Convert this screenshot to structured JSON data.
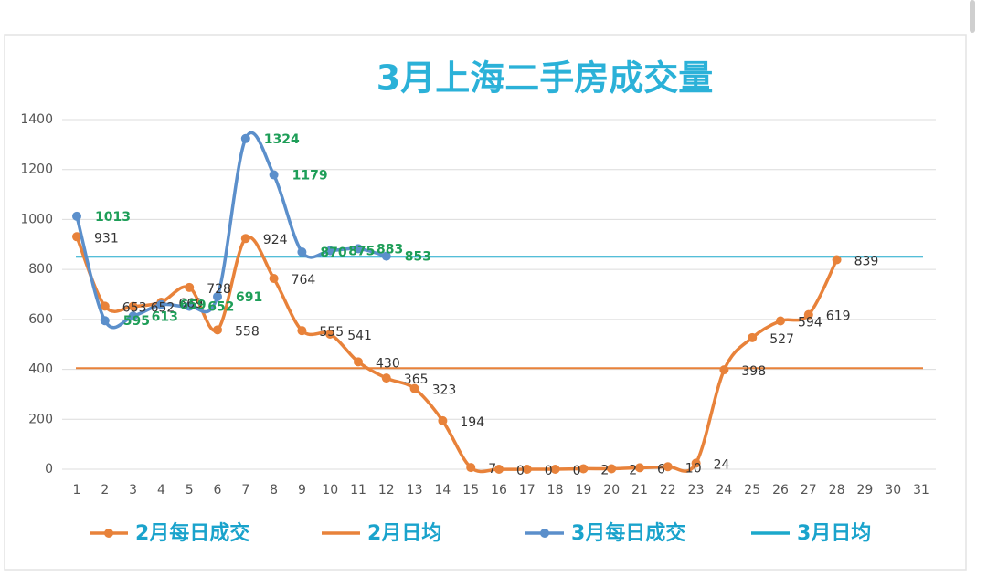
{
  "chart_data": {
    "type": "line",
    "title": "3月上海二手房成交量",
    "categories": [
      1,
      2,
      3,
      4,
      5,
      6,
      7,
      8,
      9,
      10,
      11,
      12,
      13,
      14,
      15,
      16,
      17,
      18,
      19,
      20,
      21,
      22,
      23,
      24,
      25,
      26,
      27,
      28,
      29,
      30,
      31
    ],
    "ylim": [
      0,
      1400
    ],
    "yticks": [
      0,
      200,
      400,
      600,
      800,
      1000,
      1200,
      1400
    ],
    "grid": true,
    "smooth": true,
    "legend": "bottom",
    "series": [
      {
        "name": "2月每日成交",
        "color": "#e8823a",
        "label_color": "#333333",
        "values": [
          931,
          653,
          652,
          669,
          728,
          558,
          924,
          764,
          555,
          541,
          430,
          365,
          323,
          194,
          7,
          0,
          0,
          0,
          2,
          2,
          6,
          10,
          24,
          398,
          527,
          594,
          619,
          839,
          null,
          null,
          null
        ]
      },
      {
        "name": "2月日均",
        "color": "#e8823a",
        "value": 405
      },
      {
        "name": "3月每日成交",
        "color": "#5b8fcb",
        "label_color": "#1e9e58",
        "values": [
          1013,
          595,
          613,
          659,
          652,
          691,
          1324,
          1179,
          870,
          875,
          883,
          853,
          null,
          null,
          null,
          null,
          null,
          null,
          null,
          null,
          null,
          null,
          null,
          null,
          null,
          null,
          null,
          null,
          null,
          null,
          null
        ]
      },
      {
        "name": "3月日均",
        "color": "#1ba8cb",
        "value": 851
      }
    ]
  }
}
